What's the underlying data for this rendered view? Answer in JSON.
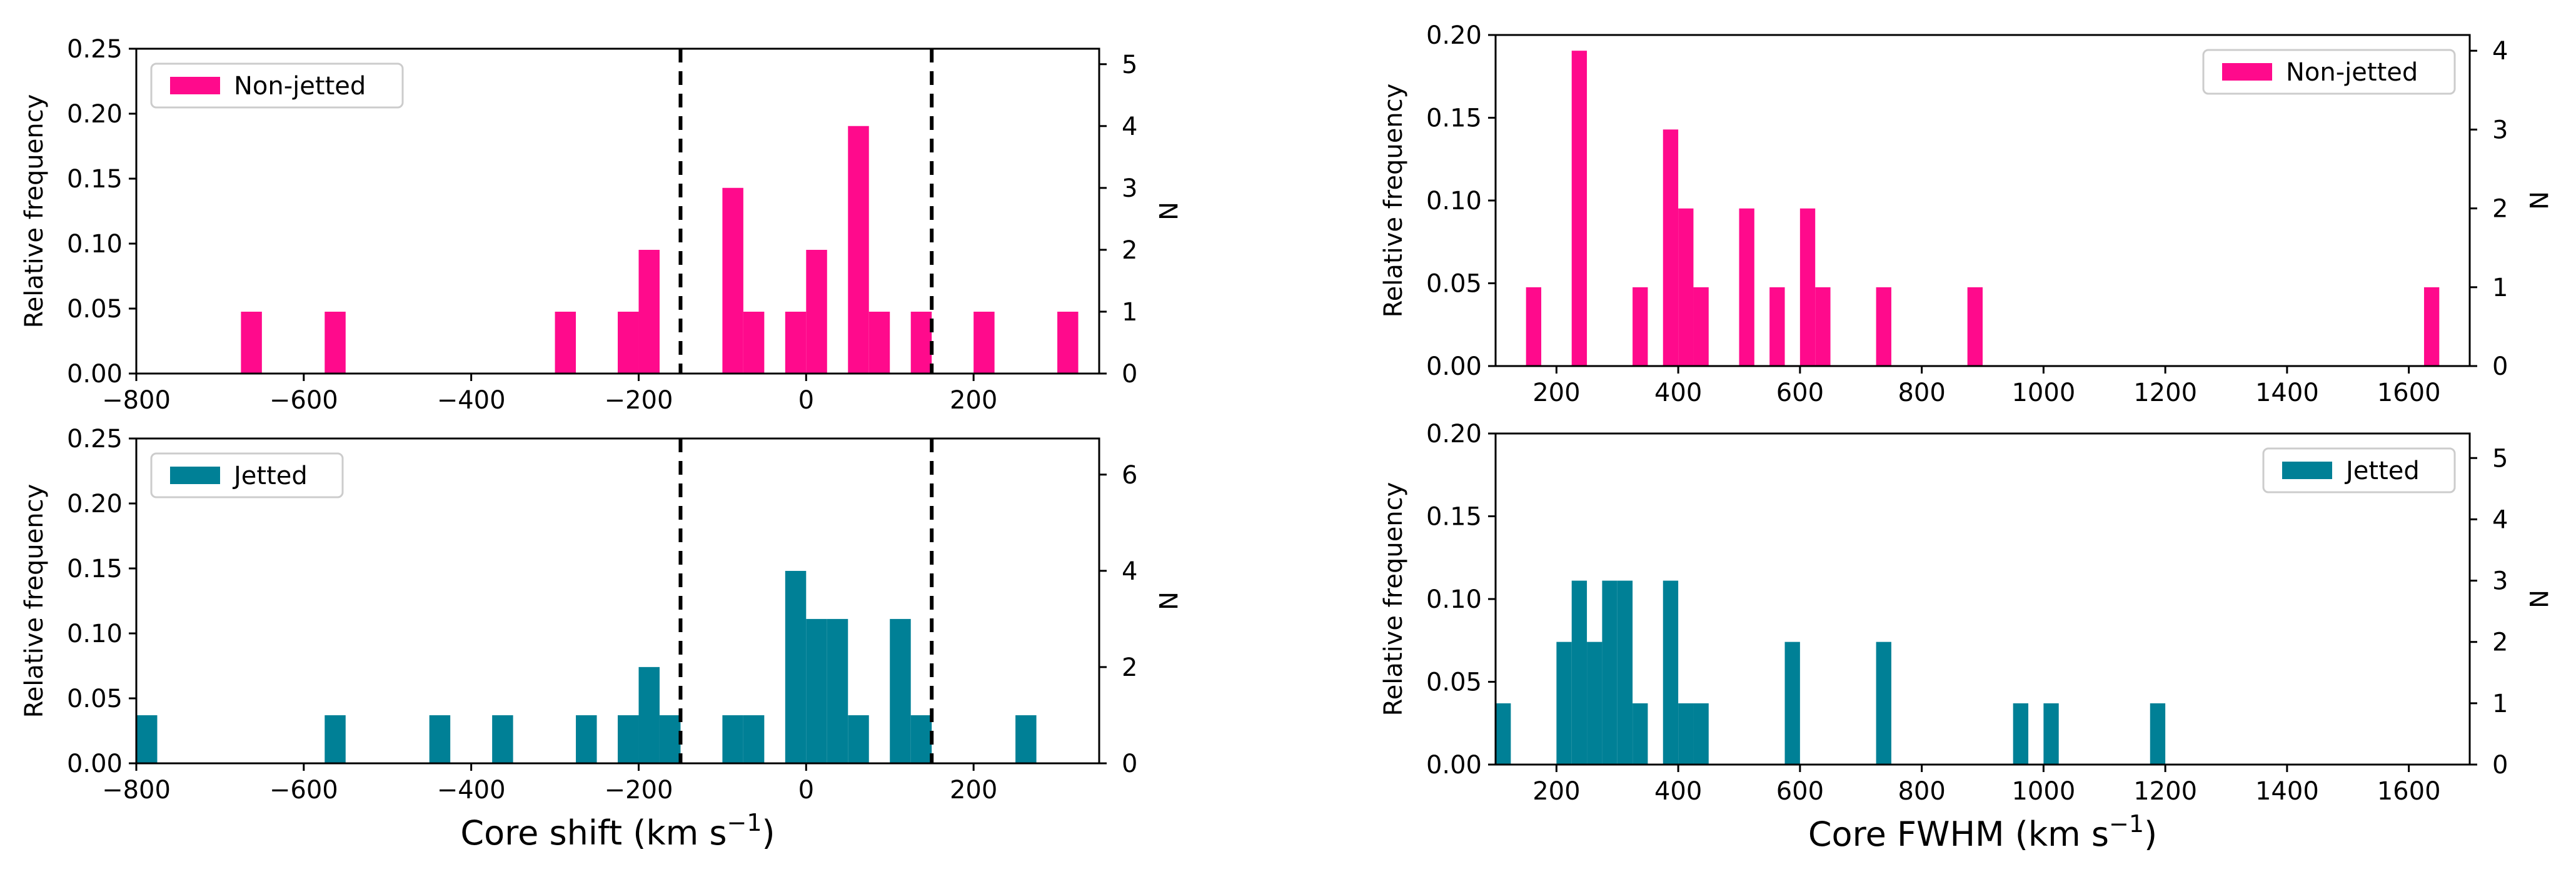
{
  "chart_data": [
    {
      "id": "p1",
      "type": "bar",
      "variant": "histogram",
      "series": [
        {
          "name": "Non-jetted",
          "color": "#ff0a8c"
        }
      ],
      "legend": {
        "label": "Non-jetted",
        "placement": "top-left"
      },
      "xlim": [
        -800,
        350
      ],
      "ylim": [
        0,
        0.25
      ],
      "ylim_right": [
        0,
        5.25
      ],
      "xticks": [
        -800,
        -600,
        -400,
        -200,
        0,
        200
      ],
      "yticks": [
        0.0,
        0.05,
        0.1,
        0.15,
        0.2,
        0.25
      ],
      "yticks_right": [
        0,
        1,
        2,
        3,
        4,
        5
      ],
      "xtick_labels": [
        "−800",
        "−600",
        "−400",
        "−200",
        "0",
        "200"
      ],
      "ytick_labels": [
        "0.00",
        "0.05",
        "0.10",
        "0.15",
        "0.20",
        "0.25"
      ],
      "ytick_right_labels": [
        "0",
        "1",
        "2",
        "3",
        "4",
        "5"
      ],
      "show_xtick_labels": true,
      "ylabel": "Relative frequency",
      "ylabel_right": "N",
      "xlabel": "",
      "bin_width": 25,
      "bins": [
        {
          "x0": -675,
          "freq": 0.0476,
          "n": 1
        },
        {
          "x0": -575,
          "freq": 0.0476,
          "n": 1
        },
        {
          "x0": -300,
          "freq": 0.0476,
          "n": 1
        },
        {
          "x0": -225,
          "freq": 0.0476,
          "n": 1
        },
        {
          "x0": -200,
          "freq": 0.0952,
          "n": 2
        },
        {
          "x0": -100,
          "freq": 0.1429,
          "n": 3
        },
        {
          "x0": -75,
          "freq": 0.0476,
          "n": 1
        },
        {
          "x0": -25,
          "freq": 0.0476,
          "n": 1
        },
        {
          "x0": 0,
          "freq": 0.0952,
          "n": 2
        },
        {
          "x0": 50,
          "freq": 0.1905,
          "n": 4
        },
        {
          "x0": 75,
          "freq": 0.0476,
          "n": 1
        },
        {
          "x0": 125,
          "freq": 0.0476,
          "n": 1
        },
        {
          "x0": 200,
          "freq": 0.0476,
          "n": 1
        },
        {
          "x0": 300,
          "freq": 0.0476,
          "n": 1
        }
      ],
      "vlines": [
        -150,
        150
      ]
    },
    {
      "id": "p2",
      "type": "bar",
      "variant": "histogram",
      "series": [
        {
          "name": "Jetted",
          "color": "#008096"
        }
      ],
      "legend": {
        "label": "Jetted",
        "placement": "top-left"
      },
      "xlim": [
        -800,
        350
      ],
      "ylim": [
        0,
        0.25
      ],
      "ylim_right": [
        0,
        6.75
      ],
      "xticks": [
        -800,
        -600,
        -400,
        -200,
        0,
        200
      ],
      "yticks": [
        0.0,
        0.05,
        0.1,
        0.15,
        0.2,
        0.25
      ],
      "yticks_right": [
        0,
        2,
        4,
        6
      ],
      "xtick_labels": [
        "−800",
        "−600",
        "−400",
        "−200",
        "0",
        "200"
      ],
      "ytick_labels": [
        "0.00",
        "0.05",
        "0.10",
        "0.15",
        "0.20",
        "0.25"
      ],
      "ytick_right_labels": [
        "0",
        "2",
        "4",
        "6"
      ],
      "show_xtick_labels": true,
      "ylabel": "Relative frequency",
      "ylabel_right": "N",
      "xlabel": "Core shift (km s",
      "xlabel_sup": "−1",
      "xlabel_tail": ")",
      "bin_width": 25,
      "bins": [
        {
          "x0": -800,
          "freq": 0.037,
          "n": 1
        },
        {
          "x0": -575,
          "freq": 0.037,
          "n": 1
        },
        {
          "x0": -450,
          "freq": 0.037,
          "n": 1
        },
        {
          "x0": -375,
          "freq": 0.037,
          "n": 1
        },
        {
          "x0": -275,
          "freq": 0.037,
          "n": 1
        },
        {
          "x0": -225,
          "freq": 0.037,
          "n": 1
        },
        {
          "x0": -200,
          "freq": 0.0741,
          "n": 2
        },
        {
          "x0": -175,
          "freq": 0.037,
          "n": 1
        },
        {
          "x0": -100,
          "freq": 0.037,
          "n": 1
        },
        {
          "x0": -75,
          "freq": 0.037,
          "n": 1
        },
        {
          "x0": -25,
          "freq": 0.1481,
          "n": 4
        },
        {
          "x0": 0,
          "freq": 0.1111,
          "n": 3
        },
        {
          "x0": 25,
          "freq": 0.1111,
          "n": 3
        },
        {
          "x0": 50,
          "freq": 0.037,
          "n": 1
        },
        {
          "x0": 100,
          "freq": 0.1111,
          "n": 3
        },
        {
          "x0": 125,
          "freq": 0.037,
          "n": 1
        },
        {
          "x0": 250,
          "freq": 0.037,
          "n": 1
        }
      ],
      "vlines": [
        -150,
        150
      ]
    },
    {
      "id": "p3",
      "type": "bar",
      "variant": "histogram",
      "series": [
        {
          "name": "Non-jetted",
          "color": "#ff0a8c"
        }
      ],
      "legend": {
        "label": "Non-jetted",
        "placement": "top-right"
      },
      "xlim": [
        100,
        1700
      ],
      "ylim": [
        0,
        0.2
      ],
      "ylim_right": [
        0,
        4.2
      ],
      "xticks": [
        200,
        400,
        600,
        800,
        1000,
        1200,
        1400,
        1600
      ],
      "yticks": [
        0.0,
        0.05,
        0.1,
        0.15,
        0.2
      ],
      "yticks_right": [
        0,
        1,
        2,
        3,
        4
      ],
      "xtick_labels": [
        "200",
        "400",
        "600",
        "800",
        "1000",
        "1200",
        "1400",
        "1600"
      ],
      "ytick_labels": [
        "0.00",
        "0.05",
        "0.10",
        "0.15",
        "0.20"
      ],
      "ytick_right_labels": [
        "0",
        "1",
        "2",
        "3",
        "4"
      ],
      "show_xtick_labels": true,
      "ylabel": "Relative frequency",
      "ylabel_right": "N",
      "xlabel": "",
      "bin_width": 25,
      "bins": [
        {
          "x0": 150,
          "freq": 0.0476,
          "n": 1
        },
        {
          "x0": 225,
          "freq": 0.1905,
          "n": 4
        },
        {
          "x0": 325,
          "freq": 0.0476,
          "n": 1
        },
        {
          "x0": 375,
          "freq": 0.1429,
          "n": 3
        },
        {
          "x0": 400,
          "freq": 0.0952,
          "n": 2
        },
        {
          "x0": 425,
          "freq": 0.0476,
          "n": 1
        },
        {
          "x0": 500,
          "freq": 0.0952,
          "n": 2
        },
        {
          "x0": 550,
          "freq": 0.0476,
          "n": 1
        },
        {
          "x0": 600,
          "freq": 0.0952,
          "n": 2
        },
        {
          "x0": 625,
          "freq": 0.0476,
          "n": 1
        },
        {
          "x0": 725,
          "freq": 0.0476,
          "n": 1
        },
        {
          "x0": 875,
          "freq": 0.0476,
          "n": 1
        },
        {
          "x0": 1625,
          "freq": 0.0476,
          "n": 1
        }
      ],
      "vlines": []
    },
    {
      "id": "p4",
      "type": "bar",
      "variant": "histogram",
      "series": [
        {
          "name": "Jetted",
          "color": "#008096"
        }
      ],
      "legend": {
        "label": "Jetted",
        "placement": "top-right"
      },
      "xlim": [
        100,
        1700
      ],
      "ylim": [
        0,
        0.2
      ],
      "ylim_right": [
        0,
        5.4
      ],
      "xticks": [
        200,
        400,
        600,
        800,
        1000,
        1200,
        1400,
        1600
      ],
      "yticks": [
        0.0,
        0.05,
        0.1,
        0.15,
        0.2
      ],
      "yticks_right": [
        0,
        1,
        2,
        3,
        4,
        5
      ],
      "xtick_labels": [
        "200",
        "400",
        "600",
        "800",
        "1000",
        "1200",
        "1400",
        "1600"
      ],
      "ytick_labels": [
        "0.00",
        "0.05",
        "0.10",
        "0.15",
        "0.20"
      ],
      "ytick_right_labels": [
        "0",
        "1",
        "2",
        "3",
        "4",
        "5"
      ],
      "show_xtick_labels": true,
      "ylabel": "Relative frequency",
      "ylabel_right": "N",
      "xlabel": "Core FWHM (km s",
      "xlabel_sup": "−1",
      "xlabel_tail": ")",
      "bin_width": 25,
      "bins": [
        {
          "x0": 100,
          "freq": 0.037,
          "n": 1
        },
        {
          "x0": 200,
          "freq": 0.0741,
          "n": 2
        },
        {
          "x0": 225,
          "freq": 0.1111,
          "n": 3
        },
        {
          "x0": 250,
          "freq": 0.0741,
          "n": 2
        },
        {
          "x0": 275,
          "freq": 0.1111,
          "n": 3
        },
        {
          "x0": 300,
          "freq": 0.1111,
          "n": 3
        },
        {
          "x0": 325,
          "freq": 0.037,
          "n": 1
        },
        {
          "x0": 375,
          "freq": 0.1111,
          "n": 3
        },
        {
          "x0": 400,
          "freq": 0.037,
          "n": 1
        },
        {
          "x0": 425,
          "freq": 0.037,
          "n": 1
        },
        {
          "x0": 575,
          "freq": 0.0741,
          "n": 2
        },
        {
          "x0": 725,
          "freq": 0.0741,
          "n": 2
        },
        {
          "x0": 950,
          "freq": 0.037,
          "n": 1
        },
        {
          "x0": 1000,
          "freq": 0.037,
          "n": 1
        },
        {
          "x0": 1175,
          "freq": 0.037,
          "n": 1
        }
      ],
      "vlines": []
    }
  ]
}
